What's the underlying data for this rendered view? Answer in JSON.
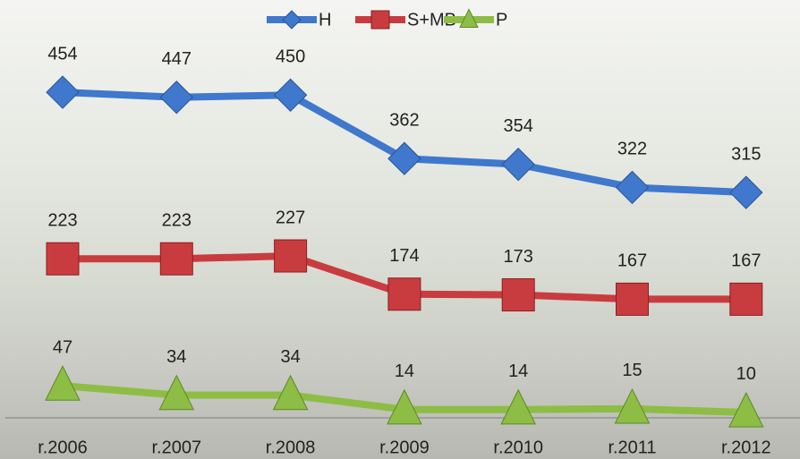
{
  "chart_data": {
    "type": "line",
    "categories": [
      "r.2006",
      "r.2007",
      "r.2008",
      "r.2009",
      "r.2010",
      "r.2011",
      "r.2012"
    ],
    "series": [
      {
        "name": "H",
        "color": "#3f78cc",
        "marker": "diamond",
        "values": [
          454,
          447,
          450,
          362,
          354,
          322,
          315
        ]
      },
      {
        "name": "S+MB",
        "color": "#c83c40",
        "marker": "square",
        "values": [
          223,
          223,
          227,
          174,
          173,
          167,
          167
        ]
      },
      {
        "name": "P",
        "color": "#8dbd45",
        "marker": "triangle",
        "values": [
          47,
          34,
          34,
          14,
          14,
          15,
          10
        ]
      }
    ],
    "ylim": [
      0,
      500
    ],
    "legend": "top"
  }
}
